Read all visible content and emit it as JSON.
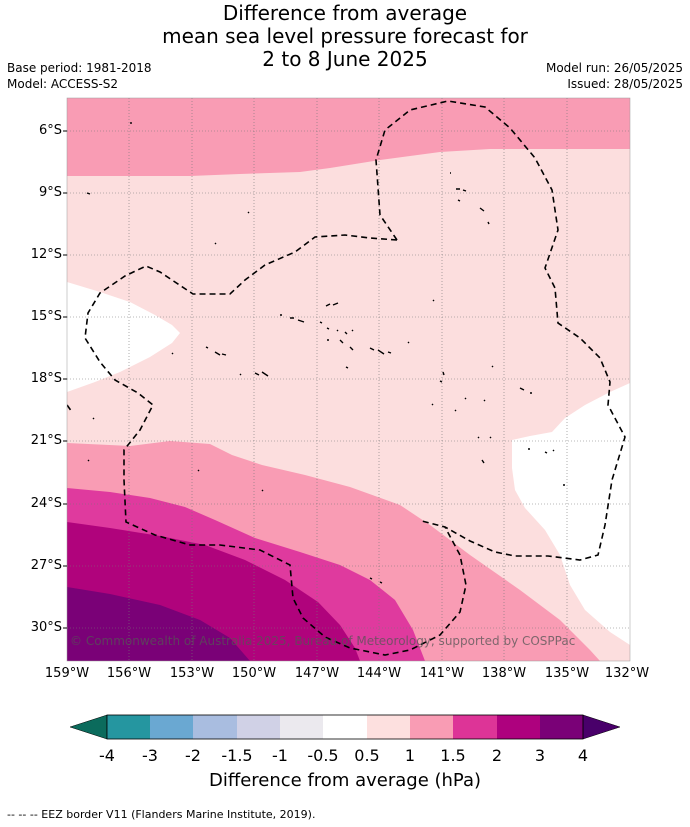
{
  "header": {
    "title_line1": "Difference from average",
    "title_line2": "mean sea level pressure forecast for",
    "title_line3": "2 to 8 June 2025",
    "base_period": "Base period: 1981-2018",
    "model": "Model: ACCESS-S2",
    "model_run": "Model run: 26/05/2025",
    "issued": "Issued: 28/05/2025"
  },
  "map": {
    "lat_labels": [
      "6°S",
      "9°S",
      "12°S",
      "15°S",
      "18°S",
      "21°S",
      "24°S",
      "27°S",
      "30°S"
    ],
    "lon_labels": [
      "159°W",
      "156°W",
      "153°W",
      "150°W",
      "147°W",
      "144°W",
      "141°W",
      "138°W",
      "135°W",
      "132°W"
    ],
    "copyright": "© Commonwealth of Australia 2025, Bureau of Meteorology, supported by COSPPac",
    "colors": {
      "band_0_5_1": "#fcdede",
      "band_1_1_5": "#f99cb4",
      "band_1_5_2": "#df3a9e",
      "band_2_3": "#b0037c",
      "band_3_4": "#7a0177",
      "neutral": "#ffffff"
    }
  },
  "colorbar": {
    "ticks": [
      "-4",
      "-3",
      "-2",
      "-1.5",
      "-1",
      "-0.5",
      "0.5",
      "1",
      "1.5",
      "2",
      "3",
      "4"
    ],
    "colors": [
      "#167a6d",
      "#2596a0",
      "#6aa8d2",
      "#a9bde0",
      "#d0d1e6",
      "#ebe9ee",
      "#ffffff",
      "#fde0df",
      "#f99cb4",
      "#dd3497",
      "#ae017e",
      "#7a0177"
    ],
    "low_extend_color": "#0b6b5c",
    "high_extend_color": "#49006a",
    "label": "Difference from average (hPa)"
  },
  "footnote": "--  --  -- EEZ border V11 (Flanders Marine Institute, 2019)."
}
